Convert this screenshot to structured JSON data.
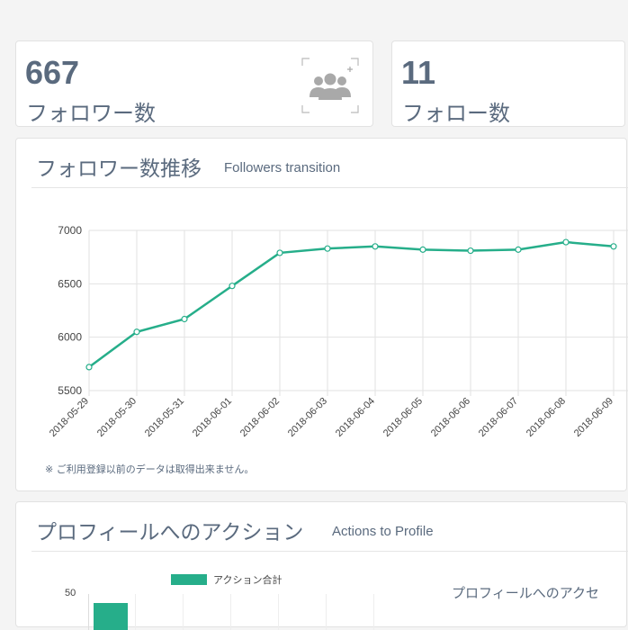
{
  "stats": [
    {
      "value": "667",
      "label": "フォロワー数",
      "icon": "followers-add-icon"
    },
    {
      "value": "11",
      "label": "フォロー数"
    }
  ],
  "followers_section": {
    "title": "フォロワー数推移",
    "subtitle": "Followers transition",
    "note": "※ ご利用登録以前のデータは取得出来ません。"
  },
  "actions_section": {
    "title": "プロフィールへのアクション",
    "subtitle": "Actions to Profile",
    "legend_label": "アクション合計",
    "side_title": "プロフィールへのアクセ",
    "y_tick_top": "50"
  },
  "colors": {
    "accent": "#26ae8a",
    "text": "#5a6a7e",
    "grid": "#e2e2e2"
  },
  "chart_data": {
    "type": "line",
    "title": "",
    "xlabel": "",
    "ylabel": "",
    "x": [
      "2018-05-29",
      "2018-05-30",
      "2018-05-31",
      "2018-06-01",
      "2018-06-02",
      "2018-06-03",
      "2018-06-04",
      "2018-06-05",
      "2018-06-06",
      "2018-06-07",
      "2018-06-08",
      "2018-06-09"
    ],
    "series": [
      {
        "values": [
          5720,
          6050,
          6170,
          6480,
          6790,
          6830,
          6850,
          6820,
          6810,
          6820,
          6890,
          6850
        ]
      }
    ],
    "yticks": [
      5500,
      6000,
      6500,
      7000
    ],
    "ylim": [
      5500,
      7000
    ],
    "grid": true
  }
}
